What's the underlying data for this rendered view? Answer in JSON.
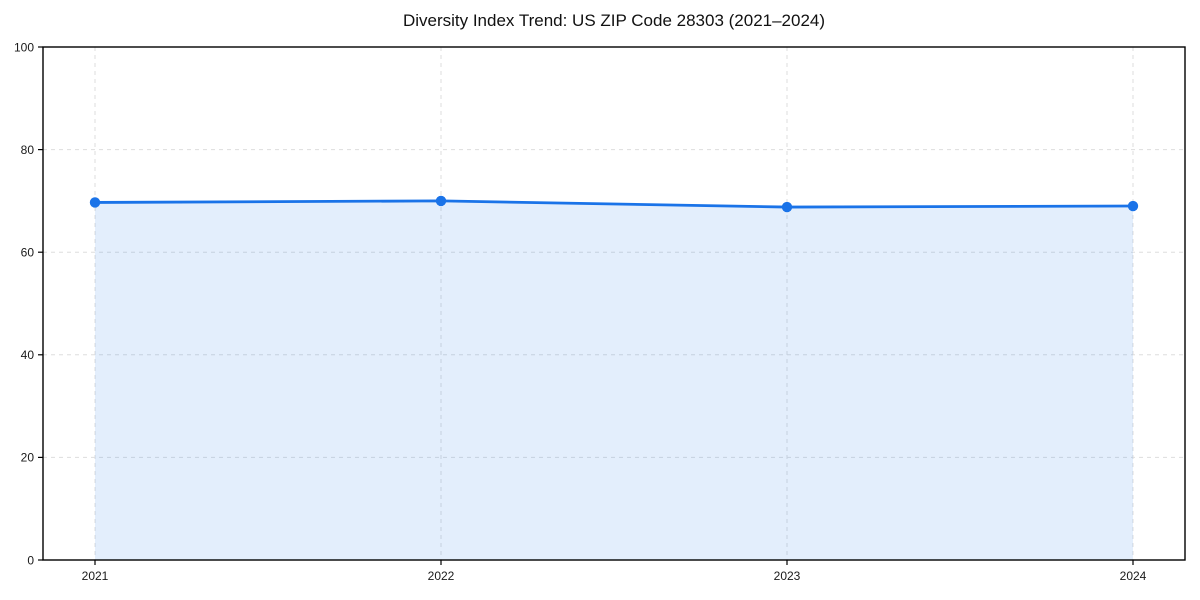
{
  "page": {
    "background_color": "#ffffff"
  },
  "chart_data": {
    "type": "area",
    "title": "Diversity Index Trend: US ZIP Code 28303 (2021–2024)",
    "xlabel": "",
    "ylabel": "",
    "x": [
      2021,
      2022,
      2023,
      2024
    ],
    "xtick_labels": [
      "2021",
      "2022",
      "2023",
      "2024"
    ],
    "series": [
      {
        "name": "Diversity Index",
        "values": [
          69.7,
          70.0,
          68.8,
          69.0
        ]
      }
    ],
    "ylim": [
      0,
      100
    ],
    "yticks": [
      0,
      20,
      40,
      60,
      80,
      100
    ],
    "grid": true,
    "grid_style": "dashed",
    "legend_position": "none",
    "colors": {
      "line": "#1a73e8",
      "marker": "#1a73e8",
      "fill": "#1a73e8",
      "fill_opacity": 0.12,
      "grid": "#dddddd",
      "spine": "#000000",
      "tick_label": "#1a1a1a",
      "title": "#111111",
      "background": "#ffffff"
    }
  }
}
